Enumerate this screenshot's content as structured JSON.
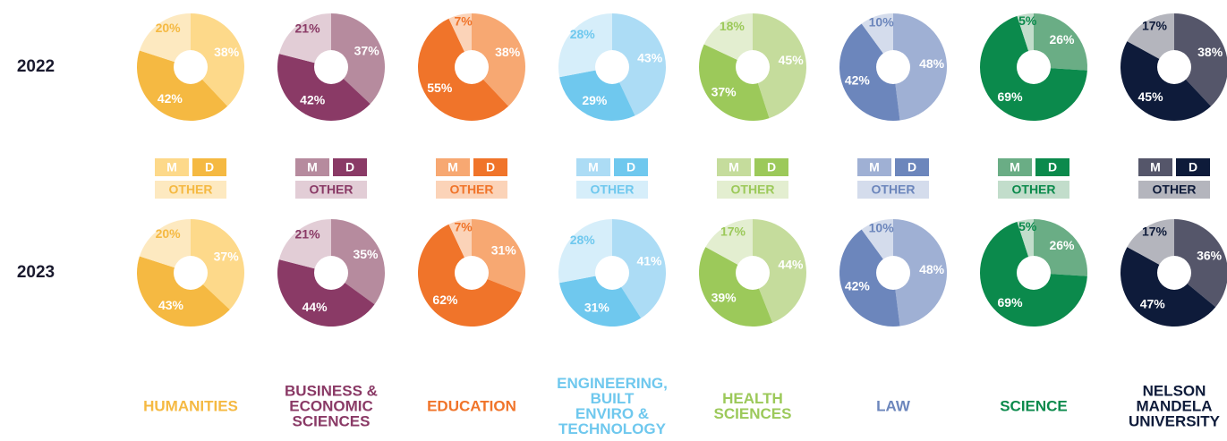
{
  "chart_data": [
    {
      "type": "pie",
      "title": [
        "HUMANITIES"
      ],
      "categories": [
        "M",
        "D",
        "OTHER"
      ],
      "colors": [
        "#fdd98a",
        "#f5b942",
        "#fde9c0"
      ],
      "series": [
        {
          "name": "2022",
          "values": [
            38,
            42,
            20
          ],
          "value_labels": [
            "38%",
            "42%",
            "20%"
          ]
        },
        {
          "name": "2023",
          "values": [
            37,
            43,
            20
          ],
          "value_labels": [
            "37%",
            "43%",
            "20%"
          ]
        }
      ]
    },
    {
      "type": "pie",
      "title": [
        "BUSINESS &",
        "ECONOMIC",
        "SCIENCES"
      ],
      "categories": [
        "M",
        "D",
        "OTHER"
      ],
      "colors": [
        "#b68b9e",
        "#8a3a66",
        "#e2cdd6"
      ],
      "series": [
        {
          "name": "2022",
          "values": [
            37,
            42,
            21
          ],
          "value_labels": [
            "37%",
            "42%",
            "21%"
          ]
        },
        {
          "name": "2023",
          "values": [
            35,
            44,
            21
          ],
          "value_labels": [
            "35%",
            "44%",
            "21%"
          ]
        }
      ]
    },
    {
      "type": "pie",
      "title": [
        "EDUCATION"
      ],
      "categories": [
        "M",
        "D",
        "OTHER"
      ],
      "colors": [
        "#f7a872",
        "#f0742a",
        "#fbd3b8"
      ],
      "series": [
        {
          "name": "2022",
          "values": [
            38,
            55,
            7
          ],
          "value_labels": [
            "38%",
            "55%",
            "7%"
          ]
        },
        {
          "name": "2023",
          "values": [
            31,
            62,
            7
          ],
          "value_labels": [
            "31%",
            "62%",
            "7%"
          ]
        }
      ]
    },
    {
      "type": "pie",
      "title": [
        "ENGINEERING,",
        "BUILT",
        "ENVIRO &",
        "TECHNOLOGY"
      ],
      "categories": [
        "M",
        "D",
        "OTHER"
      ],
      "colors": [
        "#acdcf5",
        "#6fc8ee",
        "#d6eefa"
      ],
      "series": [
        {
          "name": "2022",
          "values": [
            43,
            29,
            28
          ],
          "value_labels": [
            "43%",
            "29%",
            "28%"
          ]
        },
        {
          "name": "2023",
          "values": [
            41,
            31,
            28
          ],
          "value_labels": [
            "41%",
            "31%",
            "28%"
          ]
        }
      ]
    },
    {
      "type": "pie",
      "title": [
        "HEALTH",
        "SCIENCES"
      ],
      "categories": [
        "M",
        "D",
        "OTHER"
      ],
      "colors": [
        "#c5dc9c",
        "#9cc95a",
        "#e3eed0"
      ],
      "series": [
        {
          "name": "2022",
          "values": [
            45,
            37,
            18
          ],
          "value_labels": [
            "45%",
            "37%",
            "18%"
          ]
        },
        {
          "name": "2023",
          "values": [
            44,
            39,
            17
          ],
          "value_labels": [
            "44%",
            "39%",
            "17%"
          ]
        }
      ]
    },
    {
      "type": "pie",
      "title": [
        "LAW"
      ],
      "categories": [
        "M",
        "D",
        "OTHER"
      ],
      "colors": [
        "#9fb0d4",
        "#6c86bc",
        "#d4dcec"
      ],
      "series": [
        {
          "name": "2022",
          "values": [
            48,
            42,
            10
          ],
          "value_labels": [
            "48%",
            "42%",
            "10%"
          ]
        },
        {
          "name": "2023",
          "values": [
            48,
            42,
            10
          ],
          "value_labels": [
            "48%",
            "42%",
            "10%"
          ]
        }
      ]
    },
    {
      "type": "pie",
      "title": [
        "SCIENCE"
      ],
      "categories": [
        "M",
        "D",
        "OTHER"
      ],
      "colors": [
        "#6aad85",
        "#0b8a4c",
        "#c2ddcb"
      ],
      "series": [
        {
          "name": "2022",
          "values": [
            26,
            69,
            5
          ],
          "value_labels": [
            "26%",
            "69%",
            "5%"
          ]
        },
        {
          "name": "2023",
          "values": [
            26,
            69,
            5
          ],
          "value_labels": [
            "26%",
            "69%",
            "5%"
          ]
        }
      ]
    },
    {
      "type": "pie",
      "title": [
        "NELSON",
        "MANDELA",
        "UNIVERSITY"
      ],
      "categories": [
        "M",
        "D",
        "OTHER"
      ],
      "colors": [
        "#55566a",
        "#0e1b3a",
        "#b4b5bd"
      ],
      "series": [
        {
          "name": "2022",
          "values": [
            38,
            45,
            17
          ],
          "value_labels": [
            "38%",
            "45%",
            "17%"
          ]
        },
        {
          "name": "2023",
          "values": [
            36,
            47,
            17
          ],
          "value_labels": [
            "36%",
            "47%",
            "17%"
          ]
        }
      ]
    }
  ]
}
